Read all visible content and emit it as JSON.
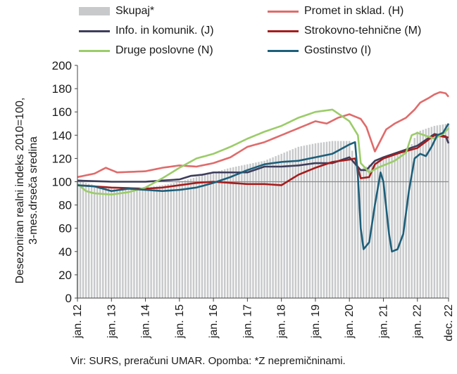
{
  "chart_data": {
    "type": "line",
    "ylabel_line1": "Desezoniran realni indeks 2010=100,",
    "ylabel_line2": "3-mes.drseča sredina",
    "ylim": [
      0,
      200
    ],
    "yticks": [
      0,
      20,
      40,
      60,
      80,
      100,
      120,
      140,
      160,
      180,
      200
    ],
    "x_categories": [
      "jan. 12",
      "jan. 13",
      "jan. 14",
      "jan. 15",
      "jan. 16",
      "jan. 17",
      "jan. 18",
      "jan. 19",
      "jan. 20",
      "jan. 21",
      "jan. 22",
      "dec. 22"
    ],
    "x_start": "2012-01",
    "x_end": "2022-12",
    "reference_line": 100,
    "legend_placement": "top",
    "bar_series": {
      "name": "Skupaj*",
      "color": "#c8c9cb",
      "anchors": [
        [
          0,
          101
        ],
        [
          6,
          97
        ],
        [
          12,
          94
        ],
        [
          18,
          93
        ],
        [
          24,
          95
        ],
        [
          30,
          97
        ],
        [
          36,
          100
        ],
        [
          42,
          104
        ],
        [
          48,
          108
        ],
        [
          54,
          112
        ],
        [
          60,
          115
        ],
        [
          66,
          118
        ],
        [
          72,
          124
        ],
        [
          78,
          130
        ],
        [
          84,
          133
        ],
        [
          90,
          135
        ],
        [
          96,
          135
        ],
        [
          99,
          110
        ],
        [
          102,
          113
        ],
        [
          105,
          118
        ],
        [
          108,
          120
        ],
        [
          111,
          122
        ],
        [
          114,
          124
        ],
        [
          117,
          127
        ],
        [
          120,
          143
        ],
        [
          126,
          148
        ],
        [
          131,
          150
        ]
      ]
    },
    "series": [
      {
        "name": "Promet in sklad. (H)",
        "color": "#e06b6b",
        "anchors": [
          [
            0,
            104
          ],
          [
            6,
            107
          ],
          [
            10,
            112
          ],
          [
            14,
            108
          ],
          [
            24,
            109
          ],
          [
            30,
            112
          ],
          [
            36,
            114
          ],
          [
            42,
            113
          ],
          [
            48,
            116
          ],
          [
            54,
            121
          ],
          [
            60,
            130
          ],
          [
            66,
            134
          ],
          [
            72,
            140
          ],
          [
            78,
            146
          ],
          [
            84,
            152
          ],
          [
            88,
            150
          ],
          [
            92,
            155
          ],
          [
            96,
            158
          ],
          [
            100,
            154
          ],
          [
            102,
            147
          ],
          [
            105,
            126
          ],
          [
            109,
            145
          ],
          [
            112,
            150
          ],
          [
            116,
            155
          ],
          [
            119,
            162
          ],
          [
            121,
            168
          ],
          [
            124,
            172
          ],
          [
            126,
            175
          ],
          [
            128,
            177
          ],
          [
            130,
            176
          ],
          [
            131,
            173
          ]
        ]
      },
      {
        "name": "Info. in komunik. (J)",
        "color": "#3d3d5c",
        "anchors": [
          [
            0,
            101
          ],
          [
            12,
            100
          ],
          [
            24,
            100
          ],
          [
            36,
            102
          ],
          [
            40,
            105
          ],
          [
            44,
            106
          ],
          [
            48,
            108
          ],
          [
            54,
            108
          ],
          [
            60,
            108
          ],
          [
            66,
            113
          ],
          [
            72,
            113
          ],
          [
            78,
            114
          ],
          [
            84,
            116
          ],
          [
            90,
            116
          ],
          [
            96,
            121
          ],
          [
            100,
            110
          ],
          [
            102,
            110
          ],
          [
            105,
            118
          ],
          [
            108,
            121
          ],
          [
            114,
            126
          ],
          [
            120,
            131
          ],
          [
            126,
            141
          ],
          [
            128,
            140
          ],
          [
            130,
            139
          ],
          [
            131,
            133
          ]
        ]
      },
      {
        "name": "Strokovno-tehnične (M)",
        "color": "#a61c1c",
        "anchors": [
          [
            0,
            97
          ],
          [
            12,
            95
          ],
          [
            24,
            94
          ],
          [
            30,
            95
          ],
          [
            36,
            97
          ],
          [
            42,
            99
          ],
          [
            48,
            100
          ],
          [
            54,
            99
          ],
          [
            60,
            98
          ],
          [
            66,
            98
          ],
          [
            72,
            97
          ],
          [
            78,
            106
          ],
          [
            84,
            112
          ],
          [
            90,
            117
          ],
          [
            96,
            119
          ],
          [
            98,
            120
          ],
          [
            100,
            103
          ],
          [
            103,
            104
          ],
          [
            105,
            115
          ],
          [
            108,
            120
          ],
          [
            114,
            125
          ],
          [
            120,
            129
          ],
          [
            126,
            140
          ],
          [
            131,
            138
          ]
        ]
      },
      {
        "name": "Druge poslovne (N)",
        "color": "#9bcc68",
        "anchors": [
          [
            0,
            98
          ],
          [
            3,
            92
          ],
          [
            6,
            90
          ],
          [
            12,
            89
          ],
          [
            18,
            91
          ],
          [
            24,
            95
          ],
          [
            30,
            103
          ],
          [
            36,
            112
          ],
          [
            42,
            120
          ],
          [
            48,
            124
          ],
          [
            54,
            130
          ],
          [
            60,
            137
          ],
          [
            66,
            143
          ],
          [
            72,
            148
          ],
          [
            78,
            155
          ],
          [
            84,
            160
          ],
          [
            90,
            162
          ],
          [
            96,
            152
          ],
          [
            99,
            140
          ],
          [
            100,
            116
          ],
          [
            103,
            108
          ],
          [
            106,
            112
          ],
          [
            112,
            118
          ],
          [
            116,
            125
          ],
          [
            118,
            140
          ],
          [
            120,
            142
          ],
          [
            126,
            137
          ],
          [
            129,
            141
          ],
          [
            131,
            146
          ]
        ]
      },
      {
        "name": "Gostinstvo (I)",
        "color": "#1d5f7a",
        "anchors": [
          [
            0,
            97
          ],
          [
            6,
            96
          ],
          [
            12,
            92
          ],
          [
            18,
            94
          ],
          [
            24,
            93
          ],
          [
            30,
            92
          ],
          [
            36,
            93
          ],
          [
            42,
            95
          ],
          [
            48,
            99
          ],
          [
            54,
            104
          ],
          [
            60,
            110
          ],
          [
            66,
            115
          ],
          [
            72,
            117
          ],
          [
            78,
            118
          ],
          [
            84,
            121
          ],
          [
            90,
            124
          ],
          [
            96,
            132
          ],
          [
            98,
            134
          ],
          [
            99,
            105
          ],
          [
            100,
            60
          ],
          [
            101,
            42
          ],
          [
            103,
            48
          ],
          [
            105,
            80
          ],
          [
            107,
            108
          ],
          [
            108,
            100
          ],
          [
            110,
            55
          ],
          [
            111,
            40
          ],
          [
            113,
            42
          ],
          [
            115,
            55
          ],
          [
            117,
            92
          ],
          [
            119,
            120
          ],
          [
            121,
            124
          ],
          [
            123,
            122
          ],
          [
            125,
            130
          ],
          [
            127,
            140
          ],
          [
            129,
            142
          ],
          [
            131,
            150
          ]
        ]
      }
    ]
  },
  "footer": "Vir: SURS, preračuni UMAR. Opomba: *Z nepremičninami."
}
